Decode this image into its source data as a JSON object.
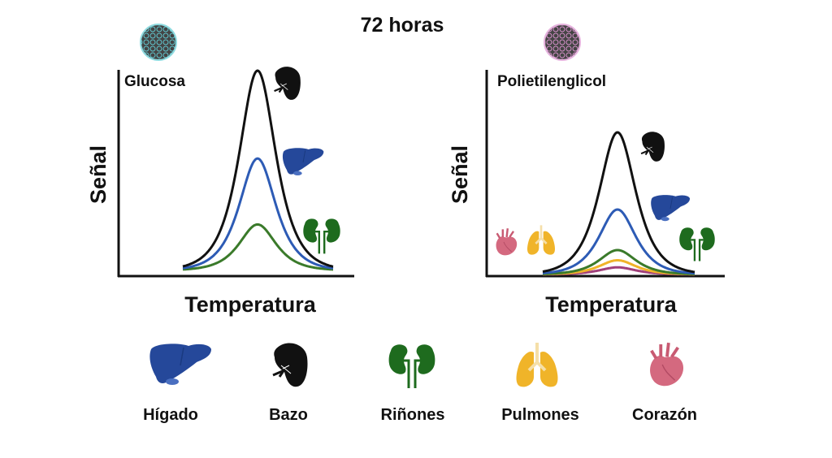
{
  "title": "72 horas",
  "panels": [
    {
      "name": "Glucosa",
      "ylabel": "Señal",
      "xlabel": "Temperatura",
      "particle_color": "#5fc4cc",
      "series": [
        {
          "organ": "Bazo",
          "color": "#111111",
          "relative_peak": 1.0
        },
        {
          "organ": "Hígado",
          "color": "#2d5bb5",
          "relative_peak": 0.56
        },
        {
          "organ": "Riñones",
          "color": "#3a7a2a",
          "relative_peak": 0.23
        }
      ]
    },
    {
      "name": "Polietilenglicol",
      "ylabel": "Señal",
      "xlabel": "Temperatura",
      "particle_color": "#d48fc8",
      "series": [
        {
          "organ": "Bazo",
          "color": "#111111",
          "relative_peak": 0.7
        },
        {
          "organ": "Hígado",
          "color": "#2d5bb5",
          "relative_peak": 0.32
        },
        {
          "organ": "Riñones",
          "color": "#3a7a2a",
          "relative_peak": 0.12
        },
        {
          "organ": "Pulmones",
          "color": "#f0b429",
          "relative_peak": 0.07
        },
        {
          "organ": "Corazón",
          "color": "#a0407a",
          "relative_peak": 0.035
        }
      ]
    }
  ],
  "legend": [
    {
      "label": "Hígado",
      "icon": "liver-icon",
      "color": "#25489a"
    },
    {
      "label": "Bazo",
      "icon": "spleen-icon",
      "color": "#111111"
    },
    {
      "label": "Riñones",
      "icon": "kidneys-icon",
      "color": "#1e6b1e"
    },
    {
      "label": "Pulmones",
      "icon": "lungs-icon",
      "color": "#f0b429"
    },
    {
      "label": "Corazón",
      "icon": "heart-icon",
      "color": "#d4697f"
    }
  ]
}
